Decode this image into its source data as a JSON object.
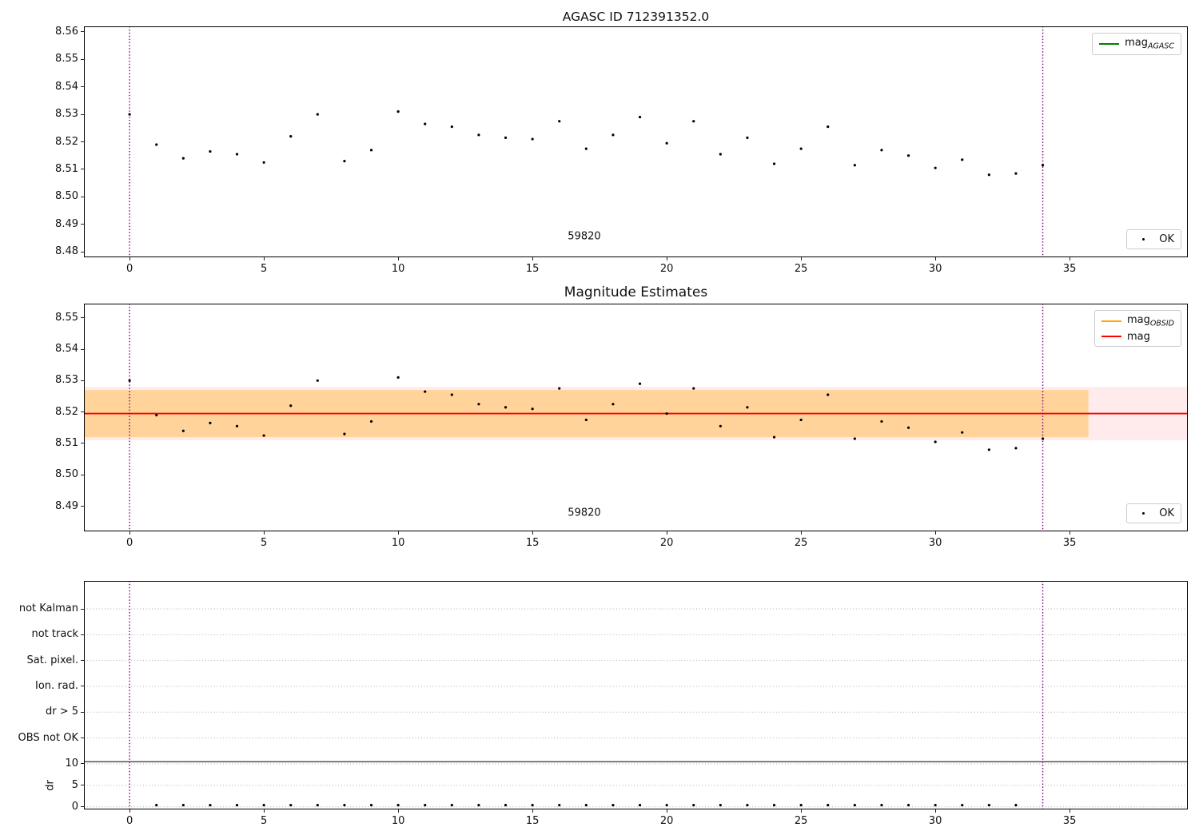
{
  "figure": {
    "background": "#ffffff"
  },
  "chart_data": [
    {
      "id": "mag-agasc",
      "type": "scatter",
      "title": "AGASC ID 712391352.0",
      "xlim": [
        -1.7,
        39.4
      ],
      "ylim": [
        8.478,
        8.562
      ],
      "xticks": [
        {
          "v": 0,
          "label": "0"
        },
        {
          "v": 5,
          "label": "5"
        },
        {
          "v": 10,
          "label": "10"
        },
        {
          "v": 15,
          "label": "15"
        },
        {
          "v": 20,
          "label": "20"
        },
        {
          "v": 25,
          "label": "25"
        },
        {
          "v": 30,
          "label": "30"
        },
        {
          "v": 35,
          "label": "35"
        }
      ],
      "yticks": [
        {
          "v": 8.48,
          "label": "8.48"
        },
        {
          "v": 8.49,
          "label": "8.49"
        },
        {
          "v": 8.5,
          "label": "8.50"
        },
        {
          "v": 8.51,
          "label": "8.51"
        },
        {
          "v": 8.52,
          "label": "8.52"
        },
        {
          "v": 8.53,
          "label": "8.53"
        },
        {
          "v": 8.54,
          "label": "8.54"
        },
        {
          "v": 8.55,
          "label": "8.55"
        },
        {
          "v": 8.56,
          "label": "8.56"
        }
      ],
      "vlines": {
        "color": "#800080",
        "xs": [
          0,
          34
        ]
      },
      "points": {
        "color": "#000000",
        "x": [
          0,
          1,
          2,
          3,
          4,
          5,
          6,
          7,
          8,
          9,
          10,
          11,
          12,
          13,
          14,
          15,
          16,
          17,
          18,
          19,
          20,
          21,
          22,
          23,
          24,
          25,
          26,
          27,
          28,
          29,
          30,
          31,
          32,
          33,
          34
        ],
        "y": [
          8.53,
          8.519,
          8.514,
          8.5165,
          8.5155,
          8.5125,
          8.522,
          8.53,
          8.513,
          8.517,
          8.531,
          8.5265,
          8.5255,
          8.5225,
          8.5215,
          8.521,
          8.5275,
          8.5175,
          8.5225,
          8.529,
          8.5195,
          8.5275,
          8.5155,
          8.5215,
          8.512,
          8.5175,
          8.5255,
          8.5115,
          8.517,
          8.515,
          8.5105,
          8.5135,
          8.508,
          8.5085,
          8.5115
        ]
      },
      "annotation": {
        "text": "59820",
        "x": 16.93,
        "y": 8.4845
      },
      "legend": {
        "entries": [
          {
            "swatch": "line",
            "color": "#008000",
            "text": "mag",
            "sub": "AGASC"
          }
        ]
      },
      "legend2": {
        "entries": [
          {
            "swatch": "dot",
            "color": "#000000",
            "text": "OK",
            "sub": ""
          }
        ]
      }
    },
    {
      "id": "mag-estimates",
      "type": "scatter",
      "title": "Magnitude Estimates",
      "xlim": [
        -1.7,
        39.4
      ],
      "ylim": [
        8.482,
        8.5545
      ],
      "xticks": [
        {
          "v": 0,
          "label": "0"
        },
        {
          "v": 5,
          "label": "5"
        },
        {
          "v": 10,
          "label": "10"
        },
        {
          "v": 15,
          "label": "15"
        },
        {
          "v": 20,
          "label": "20"
        },
        {
          "v": 25,
          "label": "25"
        },
        {
          "v": 30,
          "label": "30"
        },
        {
          "v": 35,
          "label": "35"
        }
      ],
      "yticks": [
        {
          "v": 8.49,
          "label": "8.49"
        },
        {
          "v": 8.5,
          "label": "8.50"
        },
        {
          "v": 8.51,
          "label": "8.51"
        },
        {
          "v": 8.52,
          "label": "8.52"
        },
        {
          "v": 8.53,
          "label": "8.53"
        },
        {
          "v": 8.54,
          "label": "8.54"
        },
        {
          "v": 8.55,
          "label": "8.55"
        }
      ],
      "bands": [
        {
          "x0": -1.7,
          "x1": 39.4,
          "y0": 8.511,
          "y1": 8.528,
          "color": "#ff0000",
          "opacity": 0.08
        },
        {
          "x0": -1.7,
          "x1": 35.7,
          "y0": 8.512,
          "y1": 8.527,
          "color": "#ffa500",
          "opacity": 0.35
        }
      ],
      "hlines": [
        {
          "y": 8.5195,
          "color": "#ff0000",
          "width": 1.8
        }
      ],
      "vlines": {
        "color": "#800080",
        "xs": [
          0,
          34
        ]
      },
      "points": {
        "color": "#000000",
        "x": [
          0,
          1,
          2,
          3,
          4,
          5,
          6,
          7,
          8,
          9,
          10,
          11,
          12,
          13,
          14,
          15,
          16,
          17,
          18,
          19,
          20,
          21,
          22,
          23,
          24,
          25,
          26,
          27,
          28,
          29,
          30,
          31,
          32,
          33,
          34
        ],
        "y": [
          8.53,
          8.519,
          8.514,
          8.5165,
          8.5155,
          8.5125,
          8.522,
          8.53,
          8.513,
          8.517,
          8.531,
          8.5265,
          8.5255,
          8.5225,
          8.5215,
          8.521,
          8.5275,
          8.5175,
          8.5225,
          8.529,
          8.5195,
          8.5275,
          8.5155,
          8.5215,
          8.512,
          8.5175,
          8.5255,
          8.5115,
          8.517,
          8.515,
          8.5105,
          8.5135,
          8.508,
          8.5085,
          8.5115
        ]
      },
      "annotation": {
        "text": "59820",
        "x": 16.93,
        "y": 8.487
      },
      "legend": {
        "entries": [
          {
            "swatch": "line",
            "color": "#ffa500",
            "text": "mag",
            "sub": "OBSID"
          },
          {
            "swatch": "line",
            "color": "#ff0000",
            "text": "mag",
            "sub": ""
          }
        ]
      },
      "legend2": {
        "entries": [
          {
            "swatch": "dot",
            "color": "#000000",
            "text": "OK",
            "sub": ""
          }
        ]
      }
    },
    {
      "id": "flags-dr",
      "type": "flags",
      "title": "",
      "xlim": [
        -1.7,
        39.4
      ],
      "ylim": [
        -0.6,
        52.5
      ],
      "xticks": [
        {
          "v": 0,
          "label": "0"
        },
        {
          "v": 5,
          "label": "5"
        },
        {
          "v": 10,
          "label": "10"
        },
        {
          "v": 15,
          "label": "15"
        },
        {
          "v": 20,
          "label": "20"
        },
        {
          "v": 25,
          "label": "25"
        },
        {
          "v": 30,
          "label": "30"
        },
        {
          "v": 35,
          "label": "35"
        }
      ],
      "rows": [
        {
          "v": 46,
          "label": "not Kalman"
        },
        {
          "v": 40,
          "label": "not track"
        },
        {
          "v": 34,
          "label": "Sat. pixel."
        },
        {
          "v": 28,
          "label": "Ion. rad."
        },
        {
          "v": 22,
          "label": "dr > 5"
        },
        {
          "v": 16,
          "label": "OBS not OK"
        },
        {
          "v": 10,
          "label": "10"
        },
        {
          "v": 5,
          "label": "5"
        },
        {
          "v": 0,
          "label": "0"
        }
      ],
      "ylabel": "dr",
      "grid": {
        "color": "#b0b0b0"
      },
      "hlines": [
        {
          "y": 10.5,
          "color": "#000000",
          "width": 1
        }
      ],
      "vlines": {
        "color": "#800080",
        "xs": [
          0,
          34
        ]
      },
      "points": {
        "color": "#000000",
        "x": [
          1,
          2,
          3,
          4,
          5,
          6,
          7,
          8,
          9,
          10,
          11,
          12,
          13,
          14,
          15,
          16,
          17,
          18,
          19,
          20,
          21,
          22,
          23,
          24,
          25,
          26,
          27,
          28,
          29,
          30,
          31,
          32,
          33
        ],
        "y": [
          0.4,
          0.4,
          0.4,
          0.4,
          0.4,
          0.4,
          0.4,
          0.4,
          0.4,
          0.4,
          0.4,
          0.4,
          0.4,
          0.4,
          0.4,
          0.4,
          0.4,
          0.4,
          0.4,
          0.4,
          0.4,
          0.4,
          0.4,
          0.4,
          0.4,
          0.4,
          0.4,
          0.4,
          0.4,
          0.4,
          0.4,
          0.4,
          0.4
        ]
      }
    }
  ]
}
